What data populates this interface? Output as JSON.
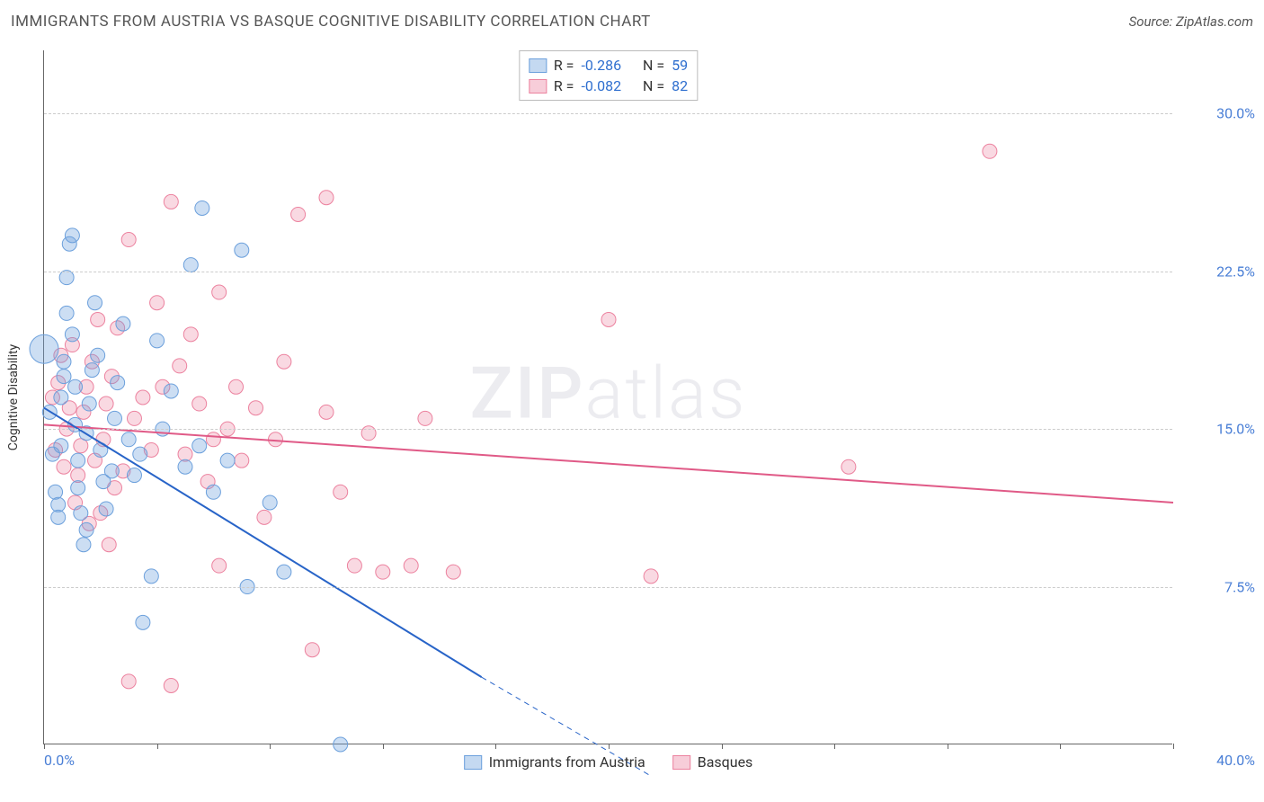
{
  "header": {
    "title": "IMMIGRANTS FROM AUSTRIA VS BASQUE COGNITIVE DISABILITY CORRELATION CHART",
    "source_label": "Source: ZipAtlas.com"
  },
  "ylabel": "Cognitive Disability",
  "watermark": {
    "part1": "ZIP",
    "part2": "atlas"
  },
  "stats": [
    {
      "series": "blue",
      "r_label": "R =",
      "r_value": "-0.286",
      "n_label": "N =",
      "n_value": "59"
    },
    {
      "series": "pink",
      "r_label": "R =",
      "r_value": "-0.082",
      "n_label": "N =",
      "n_value": "82"
    }
  ],
  "bottom_legend": [
    {
      "series": "blue",
      "label": "Immigrants from Austria"
    },
    {
      "series": "pink",
      "label": "Basques"
    }
  ],
  "axes": {
    "xlim": [
      0,
      40
    ],
    "ylim": [
      0,
      33
    ],
    "x_left_label": "0.0%",
    "x_right_label": "40.0%",
    "y_ticks": [
      {
        "value": 7.5,
        "label": "7.5%"
      },
      {
        "value": 15.0,
        "label": "15.0%"
      },
      {
        "value": 22.5,
        "label": "22.5%"
      },
      {
        "value": 30.0,
        "label": "30.0%"
      }
    ],
    "x_tick_values": [
      0,
      4,
      8,
      12,
      16,
      20,
      24,
      28,
      32,
      36,
      40
    ]
  },
  "colors": {
    "blue_fill": "rgba(108,160,220,0.35)",
    "blue_stroke": "#6ca0dc",
    "blue_line": "#2864c8",
    "pink_fill": "rgba(236,130,159,0.3)",
    "pink_stroke": "#ec829f",
    "pink_line": "#e05a87",
    "grid": "#cccccc",
    "ytick_text": "#4a7fd6"
  },
  "marker_radius": 8,
  "line_width": 2,
  "series": [
    {
      "name": "austria",
      "color_key": "blue",
      "trend": {
        "x1": 0,
        "y1": 16.0,
        "x2": 15.5,
        "y2": 3.2,
        "dash_from_x": 15.5,
        "dash_to_x": 21.5,
        "dash_to_y": -1.5
      },
      "points": [
        [
          0.2,
          15.8
        ],
        [
          0.3,
          13.8
        ],
        [
          0.4,
          12.0
        ],
        [
          0.5,
          11.4
        ],
        [
          0.5,
          10.8
        ],
        [
          0.6,
          14.2
        ],
        [
          0.6,
          16.5
        ],
        [
          0.7,
          17.5
        ],
        [
          0.7,
          18.2
        ],
        [
          0.8,
          20.5
        ],
        [
          0.8,
          22.2
        ],
        [
          0.9,
          23.8
        ],
        [
          1.0,
          24.2
        ],
        [
          1.0,
          19.5
        ],
        [
          1.1,
          17.0
        ],
        [
          1.1,
          15.2
        ],
        [
          1.2,
          13.5
        ],
        [
          1.2,
          12.2
        ],
        [
          1.3,
          11.0
        ],
        [
          1.4,
          9.5
        ],
        [
          1.5,
          10.2
        ],
        [
          1.5,
          14.8
        ],
        [
          1.6,
          16.2
        ],
        [
          1.7,
          17.8
        ],
        [
          1.8,
          21.0
        ],
        [
          1.9,
          18.5
        ],
        [
          2.0,
          14.0
        ],
        [
          2.1,
          12.5
        ],
        [
          2.2,
          11.2
        ],
        [
          2.4,
          13.0
        ],
        [
          2.5,
          15.5
        ],
        [
          2.6,
          17.2
        ],
        [
          2.8,
          20.0
        ],
        [
          3.0,
          14.5
        ],
        [
          3.2,
          12.8
        ],
        [
          3.4,
          13.8
        ],
        [
          3.5,
          5.8
        ],
        [
          3.8,
          8.0
        ],
        [
          4.0,
          19.2
        ],
        [
          4.2,
          15.0
        ],
        [
          4.5,
          16.8
        ],
        [
          5.0,
          13.2
        ],
        [
          5.2,
          22.8
        ],
        [
          5.5,
          14.2
        ],
        [
          5.6,
          25.5
        ],
        [
          6.0,
          12.0
        ],
        [
          6.5,
          13.5
        ],
        [
          7.0,
          23.5
        ],
        [
          7.2,
          7.5
        ],
        [
          8.0,
          11.5
        ],
        [
          8.5,
          8.2
        ],
        [
          10.5,
          0.0
        ]
      ],
      "overflow_point": [
        0.0,
        18.8
      ]
    },
    {
      "name": "basques",
      "color_key": "pink",
      "trend": {
        "x1": 0,
        "y1": 15.2,
        "x2": 40,
        "y2": 11.5
      },
      "points": [
        [
          0.3,
          16.5
        ],
        [
          0.4,
          14.0
        ],
        [
          0.5,
          17.2
        ],
        [
          0.6,
          18.5
        ],
        [
          0.7,
          13.2
        ],
        [
          0.8,
          15.0
        ],
        [
          0.9,
          16.0
        ],
        [
          1.0,
          19.0
        ],
        [
          1.1,
          11.5
        ],
        [
          1.2,
          12.8
        ],
        [
          1.3,
          14.2
        ],
        [
          1.4,
          15.8
        ],
        [
          1.5,
          17.0
        ],
        [
          1.6,
          10.5
        ],
        [
          1.7,
          18.2
        ],
        [
          1.8,
          13.5
        ],
        [
          1.9,
          20.2
        ],
        [
          2.0,
          11.0
        ],
        [
          2.1,
          14.5
        ],
        [
          2.2,
          16.2
        ],
        [
          2.3,
          9.5
        ],
        [
          2.4,
          17.5
        ],
        [
          2.5,
          12.2
        ],
        [
          2.6,
          19.8
        ],
        [
          2.8,
          13.0
        ],
        [
          3.0,
          24.0
        ],
        [
          3.0,
          3.0
        ],
        [
          3.2,
          15.5
        ],
        [
          3.5,
          16.5
        ],
        [
          3.8,
          14.0
        ],
        [
          4.0,
          21.0
        ],
        [
          4.2,
          17.0
        ],
        [
          4.5,
          25.8
        ],
        [
          4.5,
          2.8
        ],
        [
          4.8,
          18.0
        ],
        [
          5.0,
          13.8
        ],
        [
          5.2,
          19.5
        ],
        [
          5.5,
          16.2
        ],
        [
          5.8,
          12.5
        ],
        [
          6.0,
          14.5
        ],
        [
          6.2,
          8.5
        ],
        [
          6.2,
          21.5
        ],
        [
          6.5,
          15.0
        ],
        [
          6.8,
          17.0
        ],
        [
          7.0,
          13.5
        ],
        [
          7.5,
          16.0
        ],
        [
          7.8,
          10.8
        ],
        [
          8.2,
          14.5
        ],
        [
          8.5,
          18.2
        ],
        [
          9.0,
          25.2
        ],
        [
          9.5,
          4.5
        ],
        [
          10.0,
          15.8
        ],
        [
          10.0,
          26.0
        ],
        [
          10.5,
          12.0
        ],
        [
          11.0,
          8.5
        ],
        [
          11.5,
          14.8
        ],
        [
          12.0,
          8.2
        ],
        [
          13.0,
          8.5
        ],
        [
          13.5,
          15.5
        ],
        [
          14.5,
          8.2
        ],
        [
          20.0,
          20.2
        ],
        [
          21.5,
          8.0
        ],
        [
          28.5,
          13.2
        ],
        [
          33.5,
          28.2
        ]
      ]
    }
  ]
}
